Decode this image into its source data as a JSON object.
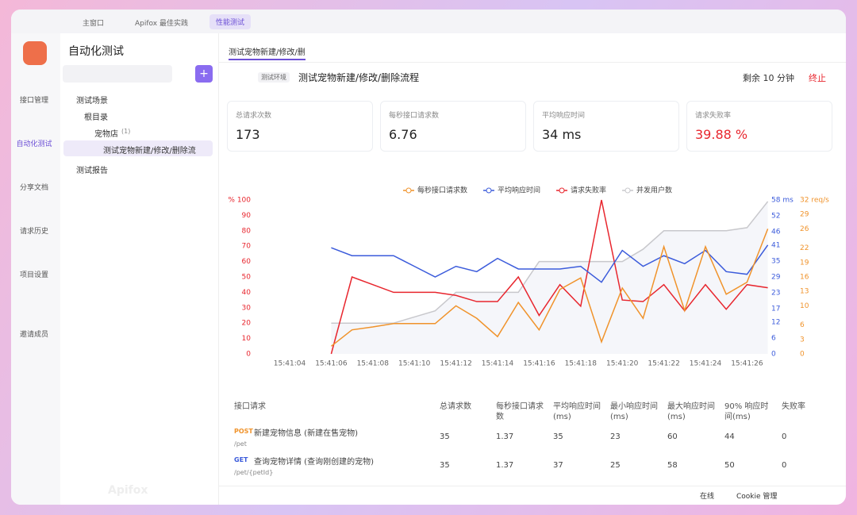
{
  "window_tabs": [
    "主窗口",
    "Apifox 最佳实践",
    "性能测试"
  ],
  "nav": [
    "接口管理",
    "自动化测试",
    "分享文档",
    "请求历史",
    "项目设置",
    "邀请成员"
  ],
  "sidebar": {
    "title": "自动化测试",
    "scene": "测试场景",
    "root": "根目录",
    "folder": "宠物店",
    "folder_count": "(1)",
    "item": "测试宠物新建/修改/删除流",
    "report": "测试报告"
  },
  "main_tab": "测试宠物新建/修改/删",
  "header": {
    "env": "测试环境",
    "title": "测试宠物新建/修改/删除流程",
    "remaining": "剩余 10 分钟",
    "stop": "终止"
  },
  "stats": [
    {
      "label": "总请求次数",
      "value": "173"
    },
    {
      "label": "每秒接口请求数",
      "value": "6.76"
    },
    {
      "label": "平均响应时间",
      "value": "34 ms"
    },
    {
      "label": "请求失败率",
      "value": "39.88 %"
    }
  ],
  "chart_data": {
    "type": "line",
    "categories": [
      "15:41:04",
      null,
      "15:41:06",
      null,
      "15:41:08",
      null,
      "15:41:10",
      null,
      "15:41:12",
      null,
      "15:41:14",
      null,
      "15:41:16",
      null,
      "15:41:18",
      null,
      "15:41:20",
      null,
      "15:41:22",
      null,
      "15:41:24",
      null,
      "15:41:26",
      null
    ],
    "series": [
      {
        "name": "每秒接口请求数",
        "color": "#f0932b",
        "axis": "y3",
        "values": [
          null,
          null,
          1.6,
          5,
          5.6,
          6.3,
          6.3,
          6.3,
          10,
          7.4,
          3.6,
          10.7,
          5,
          13.4,
          15.8,
          2.5,
          13.7,
          7.4,
          22.3,
          9,
          22.3,
          12.4,
          14.9,
          26
        ]
      },
      {
        "name": "平均响应时间",
        "color": "#3b5bdb",
        "axis": "y2",
        "values": [
          null,
          null,
          40,
          37,
          37,
          37,
          33,
          29,
          33,
          31,
          36,
          32,
          32,
          32,
          33,
          27,
          39,
          33,
          37,
          34,
          39,
          31,
          30,
          41
        ]
      },
      {
        "name": "请求失败率",
        "color": "#e8262e",
        "values": [
          null,
          null,
          0,
          50,
          45,
          40,
          40,
          40,
          38,
          34,
          34,
          50,
          25,
          45,
          31,
          100,
          35,
          34,
          45,
          28,
          45,
          29,
          45,
          43
        ]
      },
      {
        "name": "并发用户数",
        "color": "#c8c8cc",
        "area": true,
        "values": [
          null,
          null,
          20,
          20,
          20,
          20,
          24,
          28,
          40,
          40,
          40,
          40,
          60,
          60,
          60,
          60,
          60,
          68,
          80,
          80,
          80,
          80,
          82,
          99
        ]
      }
    ],
    "ylim": [
      0,
      100
    ],
    "yticks": [
      0,
      10,
      20,
      30,
      40,
      50,
      60,
      70,
      80,
      90,
      {
        "value": 100,
        "label": "% 100"
      }
    ],
    "ycolor": "#e8262e",
    "y2lim": [
      0,
      58
    ],
    "y2ticks": [
      0,
      6,
      12,
      17,
      23,
      29,
      35,
      41,
      46,
      52,
      {
        "value": 58,
        "label": "58 ms"
      }
    ],
    "y2color": "#3b5bdb",
    "y3lim": [
      0,
      32
    ],
    "y3ticks": [
      0,
      3,
      6,
      10,
      13,
      16,
      19,
      22,
      26,
      29,
      {
        "value": 32,
        "label": "32 req/s"
      }
    ],
    "y3color": "#f0932b",
    "grid": false
  },
  "table": {
    "headers": [
      "接口请求",
      "总请求数",
      "每秒接口请求数",
      "平均响应时间(ms)",
      "最小响应时间(ms)",
      "最大响应时间(ms)",
      "90% 响应时间(ms)",
      "失败率"
    ],
    "rows": [
      [
        "POST",
        "新建宠物信息 (新建在售宠物)",
        "/pet",
        "35",
        "1.37",
        "35",
        "23",
        "60",
        "44",
        "0"
      ],
      [
        "GET",
        "查询宠物详情 (查询刚创建的宠物)",
        "/pet/{petId}",
        "35",
        "1.37",
        "37",
        "25",
        "58",
        "50",
        "0"
      ]
    ]
  },
  "footer": [
    "在线",
    "Cookie 管理"
  ],
  "watermark": "Apifox"
}
